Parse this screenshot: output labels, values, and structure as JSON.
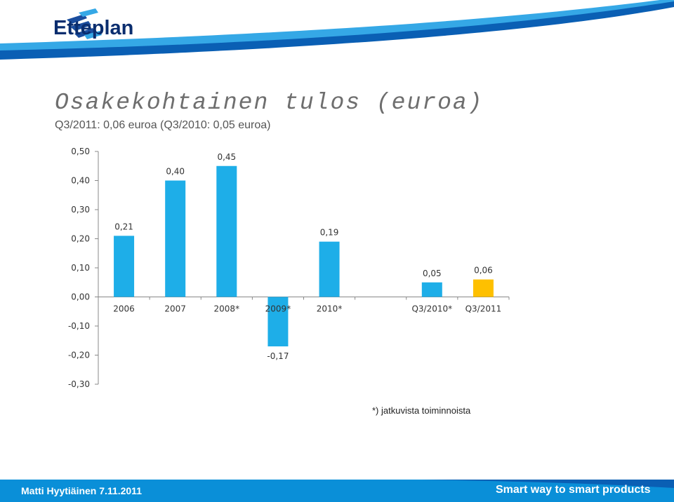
{
  "header": {
    "brand_name": "Etteplan",
    "logo_icon": "etteplan-logo-icon",
    "colors": {
      "band_dark": "#0a5fb4",
      "band_light": "#35a8e6",
      "brand_text": "#0a2d6e"
    }
  },
  "title": "Osakekohtainen tulos (euroa)",
  "subtitle": "Q3/2011: 0,06 euroa (Q3/2010: 0,05 euroa)",
  "chart_data": {
    "type": "bar",
    "categories": [
      "2006",
      "2007",
      "2008*",
      "2009*",
      "2010*",
      "",
      "Q3/2010*",
      "Q3/2011"
    ],
    "values": [
      0.21,
      0.4,
      0.45,
      -0.17,
      0.19,
      null,
      0.05,
      0.06
    ],
    "data_labels": [
      "0,21",
      "0,40",
      "0,45",
      "-0,17",
      "0,19",
      "",
      "0,05",
      "0,06"
    ],
    "ylim": [
      -0.3,
      0.5
    ],
    "yticks": [
      0.5,
      0.4,
      0.3,
      0.2,
      0.1,
      0.0,
      -0.1,
      -0.2,
      -0.3
    ],
    "ytick_labels": [
      "0,50",
      "0,40",
      "0,30",
      "0,20",
      "0,10",
      "0,00",
      "-0,10",
      "-0,20",
      "-0,30"
    ],
    "grid": false,
    "colors": {
      "default": "#1eaee8",
      "highlight": "#fec000"
    },
    "highlight_index": 7
  },
  "footnote": "*) jatkuvista toiminnoista",
  "footer": {
    "author_date": "Matti Hyytiäinen 7.11.2011",
    "slogan": "Smart way to smart products",
    "color": "#0a8fd8"
  }
}
